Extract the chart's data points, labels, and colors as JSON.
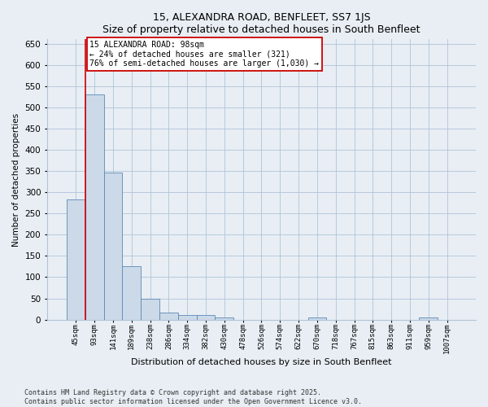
{
  "title": "15, ALEXANDRA ROAD, BENFLEET, SS7 1JS",
  "subtitle": "Size of property relative to detached houses in South Benfleet",
  "xlabel": "Distribution of detached houses by size in South Benfleet",
  "ylabel": "Number of detached properties",
  "bin_labels": [
    "45sqm",
    "93sqm",
    "141sqm",
    "189sqm",
    "238sqm",
    "286sqm",
    "334sqm",
    "382sqm",
    "430sqm",
    "478sqm",
    "526sqm",
    "574sqm",
    "622sqm",
    "670sqm",
    "718sqm",
    "767sqm",
    "815sqm",
    "863sqm",
    "911sqm",
    "959sqm",
    "1007sqm"
  ],
  "bar_heights": [
    283,
    530,
    347,
    125,
    50,
    16,
    10,
    10,
    6,
    0,
    0,
    0,
    0,
    5,
    0,
    0,
    0,
    0,
    0,
    5,
    0
  ],
  "bar_color": "#ccd9e8",
  "bar_edge_color": "#5a8ab5",
  "vline_color": "#cc0000",
  "vline_x": 0.5,
  "annotation_text": "15 ALEXANDRA ROAD: 98sqm\n← 24% of detached houses are smaller (321)\n76% of semi-detached houses are larger (1,030) →",
  "annotation_box_color": "#ffffff",
  "annotation_box_edge": "#cc0000",
  "ylim": [
    0,
    660
  ],
  "yticks": [
    0,
    50,
    100,
    150,
    200,
    250,
    300,
    350,
    400,
    450,
    500,
    550,
    600,
    650
  ],
  "footer": "Contains HM Land Registry data © Crown copyright and database right 2025.\nContains public sector information licensed under the Open Government Licence v3.0.",
  "bg_color": "#e8eef4",
  "plot_bg_color": "#e8eef4"
}
